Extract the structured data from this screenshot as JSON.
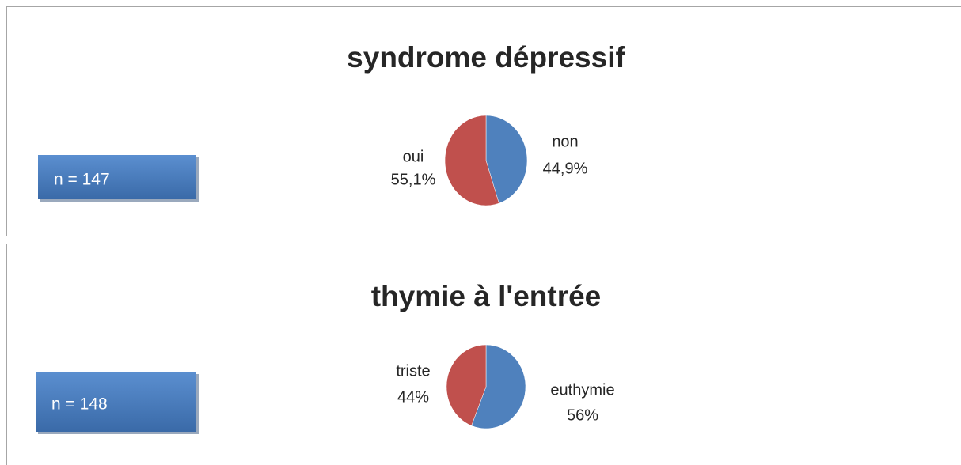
{
  "chart_data": [
    {
      "type": "pie",
      "title": "syndrome dépressif",
      "annotation": "n = 147",
      "categories": [
        "non",
        "oui"
      ],
      "values": [
        44.9,
        55.1
      ],
      "value_labels": [
        "44,9%",
        "55,1%"
      ],
      "colors": [
        "#4f81bd",
        "#c0504d"
      ]
    },
    {
      "type": "pie",
      "title": "thymie à l'entrée",
      "annotation": "n = 148",
      "categories": [
        "euthymie",
        "triste"
      ],
      "values": [
        56,
        44
      ],
      "value_labels": [
        "56%",
        "44%"
      ],
      "colors": [
        "#4f81bd",
        "#c0504d"
      ]
    }
  ]
}
